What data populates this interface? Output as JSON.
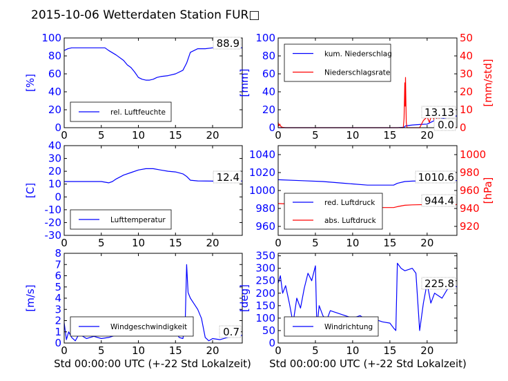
{
  "title": "2015-10-06 Wetterdaten Station FUR",
  "title_glyph": "□",
  "xlabel": "Std 00:00:00 UTC (+-22 Std Lokalzeit)",
  "colors": {
    "primary": "#0000ff",
    "secondary": "#ff0000",
    "light": "#8080ff",
    "axis": "#000000"
  },
  "chart_data": [
    {
      "type": "line",
      "id": "humidity",
      "ylabel": "[%]",
      "xlim": [
        0,
        24
      ],
      "ylim": [
        0,
        100
      ],
      "xticks": [
        0,
        5,
        10,
        15,
        20
      ],
      "yticks": [
        0,
        20,
        40,
        60,
        80,
        100
      ],
      "value_label": "88.9",
      "series": [
        {
          "name": "rel. Luftfeuchte",
          "color": "#0000ff",
          "x": [
            0,
            0.5,
            1,
            2,
            3,
            4,
            5,
            5.5,
            6,
            7,
            8,
            8.5,
            9,
            9.5,
            10,
            10.5,
            11,
            11.5,
            12,
            12.5,
            13,
            14,
            15,
            16,
            16.5,
            17,
            18,
            19,
            20,
            21,
            22,
            23,
            24
          ],
          "y": [
            86,
            88,
            89,
            89,
            89,
            89,
            89,
            89,
            86,
            81,
            75,
            70,
            67,
            62,
            56,
            54,
            53,
            53,
            54,
            56,
            57,
            58,
            60,
            64,
            72,
            84,
            88,
            88,
            89,
            89,
            90,
            90,
            89
          ]
        }
      ]
    },
    {
      "type": "line",
      "id": "precip",
      "ylabel": "[mm]",
      "ylabel_right": "[mm/std]",
      "xlim": [
        0,
        24
      ],
      "ylim": [
        0,
        100
      ],
      "ylim_right": [
        0,
        50
      ],
      "xticks": [
        0,
        5,
        10,
        15,
        20
      ],
      "yticks": [
        0,
        20,
        40,
        60,
        80,
        100
      ],
      "yticks_right": [
        0,
        10,
        20,
        30,
        40,
        50
      ],
      "value_labels": [
        "13.13",
        "0.0"
      ],
      "series": [
        {
          "name": "kum. Niederschlag",
          "color": "#0000ff",
          "axis": "left",
          "x": [
            0,
            4,
            8,
            12,
            16,
            16.9,
            17.1,
            18,
            19,
            20,
            21,
            22,
            22.5,
            24
          ],
          "y": [
            0,
            0,
            0,
            0,
            0,
            0.5,
            2,
            3,
            3.5,
            4,
            8,
            10,
            11,
            13.13
          ]
        },
        {
          "name": "Niederschlagsrate",
          "color": "#ff0000",
          "axis": "right",
          "x": [
            0,
            0.1,
            0.2,
            0.4,
            0.6,
            1,
            4,
            8,
            12,
            16,
            16.8,
            16.9,
            17.0,
            17.05,
            17.1,
            17.2,
            17.3,
            18,
            19,
            19.5,
            20,
            20.3,
            20.6,
            21,
            21.5,
            22,
            23,
            24
          ],
          "y": [
            3,
            1,
            2,
            0.5,
            0.2,
            0,
            0,
            0,
            0,
            0,
            0,
            5,
            25,
            12,
            28,
            3,
            0,
            0,
            0,
            4,
            6,
            3,
            7,
            4,
            6,
            1,
            0,
            0
          ]
        }
      ]
    },
    {
      "type": "line",
      "id": "temperature",
      "ylabel": "[C]",
      "xlim": [
        0,
        24
      ],
      "ylim": [
        -30,
        40
      ],
      "xticks": [
        0,
        5,
        10,
        15,
        20
      ],
      "yticks": [
        -30,
        -20,
        -10,
        0,
        10,
        20,
        30,
        40
      ],
      "value_label": "12.4",
      "series": [
        {
          "name": "Lufttemperatur",
          "color": "#0000ff",
          "x": [
            0,
            2,
            4,
            5,
            6,
            6.5,
            7,
            8,
            9,
            10,
            11,
            12,
            13,
            14,
            15,
            16,
            16.5,
            17,
            18,
            20,
            22,
            24
          ],
          "y": [
            12,
            12,
            12,
            12,
            11,
            12,
            14,
            17,
            19,
            21,
            22,
            22,
            21,
            20,
            19.5,
            18,
            16,
            13,
            12.5,
            12.3,
            12.4,
            12.4
          ]
        }
      ]
    },
    {
      "type": "line",
      "id": "pressure",
      "ylabel": "",
      "ylabel_right": "[hPa]",
      "xlim": [
        0,
        24
      ],
      "ylim": [
        950,
        1050
      ],
      "ylim_right": [
        910,
        1010
      ],
      "xticks": [
        0,
        5,
        10,
        15,
        20
      ],
      "yticks": [
        960,
        980,
        1000,
        1020,
        1040
      ],
      "yticks_right": [
        920,
        940,
        960,
        980,
        1000
      ],
      "value_labels": [
        "1010.6",
        "944.4"
      ],
      "series": [
        {
          "name": "red. Luftdruck",
          "color": "#0000ff",
          "axis": "left",
          "x": [
            0,
            3,
            6,
            9,
            12,
            14,
            15.5,
            16,
            17,
            18,
            20,
            24
          ],
          "y": [
            1012,
            1011,
            1010,
            1008,
            1006,
            1006,
            1006,
            1008,
            1010,
            1010.5,
            1011,
            1011
          ]
        },
        {
          "name": "abs. Luftdruck",
          "color": "#ff0000",
          "axis": "right",
          "x": [
            0,
            3,
            6,
            9,
            12,
            14,
            15.5,
            16,
            17,
            18,
            20,
            24
          ],
          "y": [
            945.5,
            944.5,
            943.5,
            942.5,
            941.5,
            941,
            941,
            942,
            943.5,
            944,
            944.4,
            944.4
          ]
        }
      ]
    },
    {
      "type": "line",
      "id": "wind_speed",
      "ylabel": "[m/s]",
      "xlim": [
        0,
        24
      ],
      "ylim": [
        0,
        8
      ],
      "xticks": [
        0,
        5,
        10,
        15,
        20
      ],
      "yticks": [
        0,
        1,
        2,
        3,
        4,
        5,
        6,
        7,
        8
      ],
      "value_label": "0.7",
      "series": [
        {
          "name": "Windgeschwindigkeit",
          "color": "#0000ff",
          "x": [
            0,
            0.3,
            0.6,
            1,
            1.5,
            2,
            3,
            4,
            5,
            6,
            7,
            8,
            9,
            10,
            11,
            12,
            13,
            13.5,
            14,
            15,
            15.5,
            16,
            16.3,
            16.5,
            16.7,
            17,
            17.5,
            18,
            18.5,
            19,
            19.5,
            20,
            21,
            22,
            23,
            24
          ],
          "y": [
            1.8,
            0.3,
            1.0,
            0.5,
            0.2,
            0.8,
            0.4,
            0.6,
            0.4,
            0.5,
            0.7,
            0.9,
            1.1,
            1.4,
            1.2,
            1.3,
            1.6,
            2.0,
            1.2,
            1.0,
            0.5,
            0.4,
            1.5,
            7.0,
            4.5,
            4.0,
            3.5,
            3.0,
            2.2,
            0.5,
            0.2,
            0.4,
            0.3,
            0.5,
            0.6,
            0.7
          ]
        }
      ]
    },
    {
      "type": "line",
      "id": "wind_dir",
      "ylabel": "[deg]",
      "xlim": [
        0,
        24
      ],
      "ylim": [
        0,
        360
      ],
      "xticks": [
        0,
        5,
        10,
        15,
        20
      ],
      "yticks": [
        0,
        50,
        100,
        150,
        200,
        250,
        300,
        350
      ],
      "value_label": "225.8",
      "series": [
        {
          "name": "Windrichtung",
          "color": "#0000ff",
          "x": [
            0,
            0.3,
            0.6,
            1,
            1.5,
            2,
            2.5,
            3,
            3.5,
            4,
            4.5,
            5,
            5.2,
            5.5,
            6,
            6.5,
            7,
            8,
            9,
            10,
            11,
            12,
            13,
            14,
            15,
            15.5,
            15.8,
            16,
            16.5,
            17,
            18,
            18.5,
            19,
            19.5,
            20,
            20.5,
            21,
            22,
            23,
            24
          ],
          "y": [
            240,
            270,
            200,
            230,
            160,
            80,
            180,
            140,
            220,
            280,
            250,
            310,
            60,
            150,
            110,
            90,
            130,
            120,
            110,
            100,
            110,
            90,
            95,
            85,
            80,
            60,
            50,
            320,
            300,
            290,
            300,
            280,
            50,
            160,
            240,
            160,
            200,
            180,
            230,
            226
          ]
        }
      ]
    }
  ]
}
